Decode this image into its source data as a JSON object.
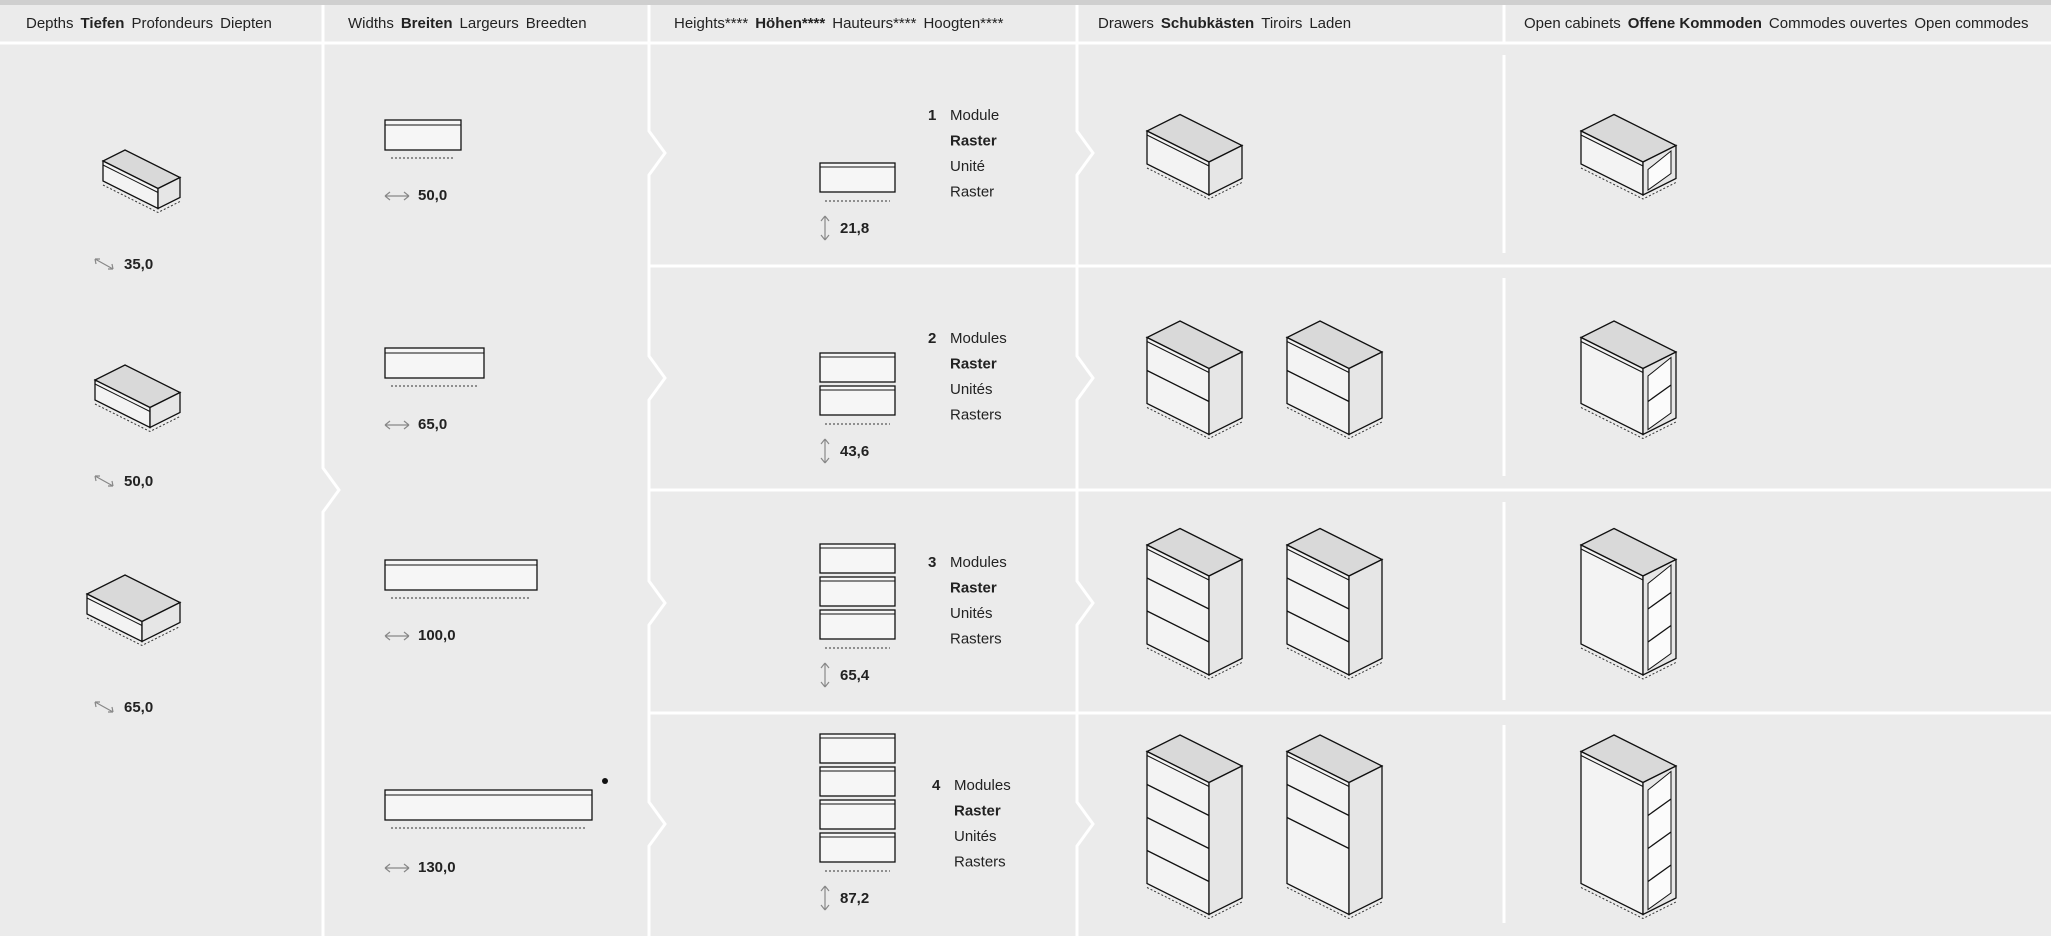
{
  "headers": [
    [
      "Depths",
      "Tiefen",
      "Profondeurs",
      "Diepten"
    ],
    [
      "Widths",
      "Breiten",
      "Largeurs",
      "Breedten"
    ],
    [
      "Heights****",
      "Höhen****",
      "Hauteurs****",
      "Hoogten****"
    ],
    [
      "Drawers",
      "Schubkästen",
      "Tiroirs",
      "Laden"
    ],
    [
      "Open cabinets",
      "Offene Kommoden",
      "Commodes ouvertes",
      "Open commodes"
    ]
  ],
  "depths": [
    "35,0",
    "50,0",
    "65,0"
  ],
  "widths": [
    "50,0",
    "65,0",
    "100,0",
    "130,0"
  ],
  "heights": [
    {
      "count": 1,
      "words": [
        "Module",
        "Raster",
        "Unité",
        "Raster"
      ],
      "value": "21,8"
    },
    {
      "count": 2,
      "words": [
        "Modules",
        "Raster",
        "Unités",
        "Rasters"
      ],
      "value": "43,6"
    },
    {
      "count": 3,
      "words": [
        "Modules",
        "Raster",
        "Unités",
        "Rasters"
      ],
      "value": "65,4"
    },
    {
      "count": 4,
      "words": [
        "Modules",
        "Raster",
        "Unités",
        "Rasters"
      ],
      "value": "87,2"
    }
  ]
}
